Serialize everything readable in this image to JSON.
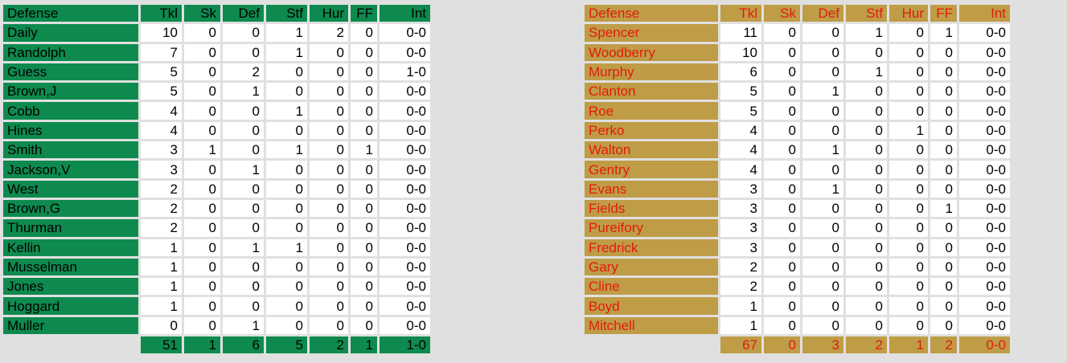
{
  "columns": [
    "Defense",
    "Tkl",
    "Sk",
    "Def",
    "Stf",
    "Hur",
    "FF",
    "Int"
  ],
  "left_team": {
    "colors": {
      "accent": "#0e8a4f",
      "text": "#000000"
    },
    "players": [
      {
        "name": "Daily",
        "stats": [
          "10",
          "0",
          "0",
          "1",
          "2",
          "0",
          "0-0"
        ]
      },
      {
        "name": "Randolph",
        "stats": [
          "7",
          "0",
          "0",
          "1",
          "0",
          "0",
          "0-0"
        ]
      },
      {
        "name": "Guess",
        "stats": [
          "5",
          "0",
          "2",
          "0",
          "0",
          "0",
          "1-0"
        ]
      },
      {
        "name": "Brown,J",
        "stats": [
          "5",
          "0",
          "1",
          "0",
          "0",
          "0",
          "0-0"
        ]
      },
      {
        "name": "Cobb",
        "stats": [
          "4",
          "0",
          "0",
          "1",
          "0",
          "0",
          "0-0"
        ]
      },
      {
        "name": "Hines",
        "stats": [
          "4",
          "0",
          "0",
          "0",
          "0",
          "0",
          "0-0"
        ]
      },
      {
        "name": "Smith",
        "stats": [
          "3",
          "1",
          "0",
          "1",
          "0",
          "1",
          "0-0"
        ]
      },
      {
        "name": "Jackson,V",
        "stats": [
          "3",
          "0",
          "1",
          "0",
          "0",
          "0",
          "0-0"
        ]
      },
      {
        "name": "West",
        "stats": [
          "2",
          "0",
          "0",
          "0",
          "0",
          "0",
          "0-0"
        ]
      },
      {
        "name": "Brown,G",
        "stats": [
          "2",
          "0",
          "0",
          "0",
          "0",
          "0",
          "0-0"
        ]
      },
      {
        "name": "Thurman",
        "stats": [
          "2",
          "0",
          "0",
          "0",
          "0",
          "0",
          "0-0"
        ]
      },
      {
        "name": "Kellin",
        "stats": [
          "1",
          "0",
          "1",
          "1",
          "0",
          "0",
          "0-0"
        ]
      },
      {
        "name": "Musselman",
        "stats": [
          "1",
          "0",
          "0",
          "0",
          "0",
          "0",
          "0-0"
        ]
      },
      {
        "name": "Jones",
        "stats": [
          "1",
          "0",
          "0",
          "0",
          "0",
          "0",
          "0-0"
        ]
      },
      {
        "name": "Hoggard",
        "stats": [
          "1",
          "0",
          "0",
          "0",
          "0",
          "0",
          "0-0"
        ]
      },
      {
        "name": "Muller",
        "stats": [
          "0",
          "0",
          "1",
          "0",
          "0",
          "0",
          "0-0"
        ]
      }
    ],
    "totals": [
      "51",
      "1",
      "6",
      "5",
      "2",
      "1",
      "1-0"
    ]
  },
  "right_team": {
    "colors": {
      "accent": "#bf9c46",
      "text": "#e31b0c"
    },
    "players": [
      {
        "name": "Spencer",
        "stats": [
          "11",
          "0",
          "0",
          "1",
          "0",
          "1",
          "0-0"
        ]
      },
      {
        "name": "Woodberry",
        "stats": [
          "10",
          "0",
          "0",
          "0",
          "0",
          "0",
          "0-0"
        ]
      },
      {
        "name": "Murphy",
        "stats": [
          "6",
          "0",
          "0",
          "1",
          "0",
          "0",
          "0-0"
        ]
      },
      {
        "name": "Clanton",
        "stats": [
          "5",
          "0",
          "1",
          "0",
          "0",
          "0",
          "0-0"
        ]
      },
      {
        "name": "Roe",
        "stats": [
          "5",
          "0",
          "0",
          "0",
          "0",
          "0",
          "0-0"
        ]
      },
      {
        "name": "Perko",
        "stats": [
          "4",
          "0",
          "0",
          "0",
          "1",
          "0",
          "0-0"
        ]
      },
      {
        "name": "Walton",
        "stats": [
          "4",
          "0",
          "1",
          "0",
          "0",
          "0",
          "0-0"
        ]
      },
      {
        "name": "Gentry",
        "stats": [
          "4",
          "0",
          "0",
          "0",
          "0",
          "0",
          "0-0"
        ]
      },
      {
        "name": "Evans",
        "stats": [
          "3",
          "0",
          "1",
          "0",
          "0",
          "0",
          "0-0"
        ]
      },
      {
        "name": "Fields",
        "stats": [
          "3",
          "0",
          "0",
          "0",
          "0",
          "1",
          "0-0"
        ]
      },
      {
        "name": "Pureifory",
        "stats": [
          "3",
          "0",
          "0",
          "0",
          "0",
          "0",
          "0-0"
        ]
      },
      {
        "name": "Fredrick",
        "stats": [
          "3",
          "0",
          "0",
          "0",
          "0",
          "0",
          "0-0"
        ]
      },
      {
        "name": "Gary",
        "stats": [
          "2",
          "0",
          "0",
          "0",
          "0",
          "0",
          "0-0"
        ]
      },
      {
        "name": "Cline",
        "stats": [
          "2",
          "0",
          "0",
          "0",
          "0",
          "0",
          "0-0"
        ]
      },
      {
        "name": "Boyd",
        "stats": [
          "1",
          "0",
          "0",
          "0",
          "0",
          "0",
          "0-0"
        ]
      },
      {
        "name": "Mitchell",
        "stats": [
          "1",
          "0",
          "0",
          "0",
          "0",
          "0",
          "0-0"
        ]
      }
    ],
    "totals": [
      "67",
      "0",
      "3",
      "2",
      "1",
      "2",
      "0-0"
    ]
  }
}
